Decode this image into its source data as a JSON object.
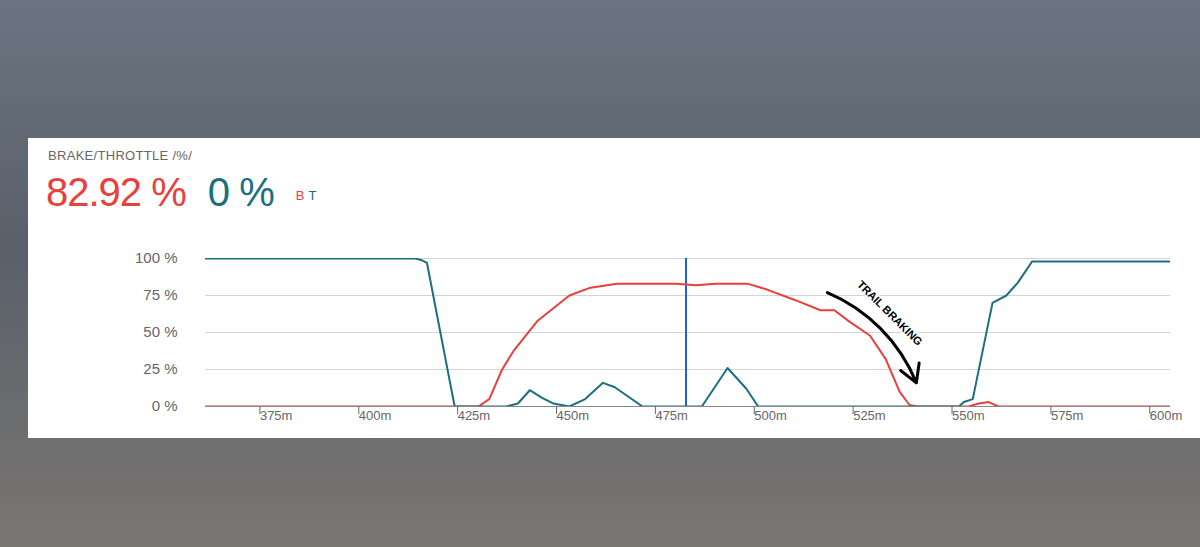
{
  "chart_data": {
    "type": "line",
    "title": "BRAKE/THROTTLE /%/",
    "legend": "top",
    "grid": true,
    "readout": [
      {
        "name": "B",
        "value": 82.92,
        "label": "82.92 %"
      },
      {
        "name": "T",
        "value": 0,
        "label": "0 %"
      }
    ],
    "cursor_x": 483.5,
    "xlim": [
      362,
      606
    ],
    "xticks": [
      {
        "value": 375,
        "label": "375m"
      },
      {
        "value": 400,
        "label": "400m"
      },
      {
        "value": 425,
        "label": "425m"
      },
      {
        "value": 450,
        "label": "450m"
      },
      {
        "value": 475,
        "label": "475m"
      },
      {
        "value": 500,
        "label": "500m"
      },
      {
        "value": 525,
        "label": "525m"
      },
      {
        "value": 550,
        "label": "550m"
      },
      {
        "value": 575,
        "label": "575m"
      },
      {
        "value": 600,
        "label": "600m"
      }
    ],
    "ylim": [
      0,
      100
    ],
    "yticks": [
      {
        "value": 0,
        "label": "0 %"
      },
      {
        "value": 25,
        "label": "25 %"
      },
      {
        "value": 50,
        "label": "50 %"
      },
      {
        "value": 75,
        "label": "75 %"
      },
      {
        "value": 100,
        "label": "100 %"
      }
    ],
    "series": [
      {
        "name": "B",
        "color": "#e8403a",
        "x": [
          362,
          431,
          433.75,
          437,
          440,
          446,
          454,
          459,
          466,
          481,
          486,
          491,
          499,
          504,
          511,
          517.5,
          521,
          525,
          530,
          534,
          537.5,
          540,
          542,
          555,
          557.5,
          560,
          562.5,
          606
        ],
        "values": [
          0,
          0,
          5,
          25,
          38,
          58,
          75,
          80,
          83,
          83,
          82,
          83,
          83,
          79,
          72,
          65,
          65,
          57,
          48,
          32,
          10,
          1,
          0,
          0,
          2,
          3,
          0,
          0
        ]
      },
      {
        "name": "T",
        "color": "#1a7080",
        "x": [
          362,
          415,
          416.5,
          418,
          425,
          430,
          438,
          441,
          444,
          447,
          450,
          454,
          458,
          462.5,
          465.5,
          472.5,
          487.5,
          494,
          498.75,
          501.75,
          552.5,
          553.75,
          556,
          561,
          564.5,
          567.5,
          571,
          578.75,
          606
        ],
        "values": [
          100,
          100,
          99,
          97,
          0,
          0,
          0,
          2,
          11,
          6,
          2,
          0,
          5,
          16,
          13,
          0,
          0,
          26,
          12,
          0,
          0,
          3,
          5,
          70,
          75,
          84,
          98,
          98,
          98
        ]
      }
    ],
    "annotations": [
      {
        "text": "TRAIL BRAKING",
        "x": 535,
        "y": 63,
        "arrow": {
          "x1": 519.25,
          "y1": 77,
          "x2": 541.75,
          "y2": 16
        }
      }
    ]
  }
}
